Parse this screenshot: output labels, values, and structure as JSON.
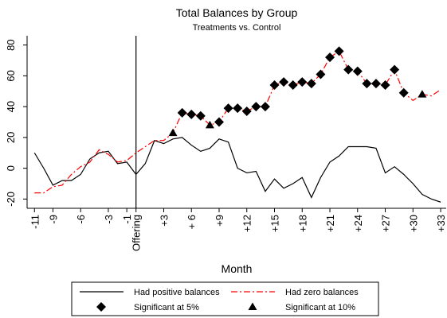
{
  "chart_data": {
    "type": "line",
    "title": "Total Balances by Group",
    "subtitle": "Treatments vs. Control",
    "x_label": "Month",
    "x": [
      -11,
      -10,
      -9,
      -8,
      -7,
      -6,
      -5,
      -4,
      -3,
      -2,
      -1,
      0,
      1,
      2,
      3,
      4,
      5,
      6,
      7,
      8,
      9,
      10,
      11,
      12,
      13,
      14,
      15,
      16,
      17,
      18,
      19,
      20,
      21,
      22,
      23,
      24,
      25,
      26,
      27,
      28,
      29,
      30,
      31,
      32,
      33
    ],
    "series": [
      {
        "name": "Had positive balances",
        "color": "#000000",
        "style": "solid",
        "values": [
          10,
          0,
          -11,
          -8,
          -8,
          -4,
          6,
          10,
          11,
          3,
          4,
          -4,
          3,
          18,
          16,
          19,
          20,
          15,
          11,
          13,
          19,
          17,
          0,
          -3,
          -2,
          -15,
          -7,
          -13,
          -10,
          -6,
          -19,
          -6,
          4,
          8,
          14,
          14,
          14,
          13,
          -3,
          1,
          -4,
          -10,
          -17,
          -20,
          -22
        ]
      },
      {
        "name": "Had zero balances",
        "color": "#ff0000",
        "style": "dashdot",
        "values": [
          -16,
          -16,
          -12,
          -11,
          -4,
          1,
          4,
          12,
          9,
          4,
          5,
          10,
          14,
          18,
          18,
          23,
          36,
          35,
          34,
          28,
          30,
          39,
          39,
          37,
          40,
          40,
          54,
          56,
          54,
          56,
          55,
          61,
          72,
          76,
          64,
          63,
          55,
          55,
          54,
          64,
          49,
          44,
          48,
          47,
          51
        ]
      },
      {
        "name": "Significant at 5%",
        "color": "#000000",
        "style": "diamond",
        "values": [
          null,
          null,
          null,
          null,
          null,
          null,
          null,
          null,
          null,
          null,
          null,
          null,
          null,
          null,
          null,
          null,
          36,
          35,
          34,
          null,
          30,
          39,
          39,
          37,
          40,
          40,
          54,
          56,
          54,
          56,
          55,
          61,
          72,
          76,
          64,
          63,
          55,
          55,
          54,
          64,
          49,
          null,
          null,
          null,
          null
        ]
      },
      {
        "name": "Significant at 10%",
        "color": "#000000",
        "style": "triangle",
        "values": [
          null,
          null,
          null,
          null,
          null,
          null,
          null,
          null,
          null,
          null,
          null,
          null,
          null,
          null,
          null,
          23,
          null,
          null,
          null,
          28,
          null,
          null,
          null,
          null,
          null,
          null,
          null,
          null,
          null,
          null,
          null,
          null,
          null,
          null,
          null,
          null,
          null,
          null,
          null,
          null,
          null,
          null,
          48,
          null,
          null
        ]
      }
    ],
    "vline": 0,
    "xlim": [
      -11.8,
      33.6
    ],
    "xticks": [
      -11,
      -9,
      -6,
      -3,
      -1,
      {
        "value": 0,
        "label": "Offering"
      },
      {
        "value": 3,
        "label": "+3"
      },
      {
        "value": 6,
        "label": "+ 6"
      },
      {
        "value": 9,
        "label": "+9"
      },
      {
        "value": 12,
        "label": "+12"
      },
      {
        "value": 15,
        "label": "+15"
      },
      {
        "value": 18,
        "label": "+18"
      },
      {
        "value": 21,
        "label": "+21"
      },
      {
        "value": 24,
        "label": "+24"
      },
      {
        "value": 27,
        "label": "+27"
      },
      {
        "value": 30,
        "label": "+30"
      },
      {
        "value": 33,
        "label": "+33"
      }
    ],
    "ylim": [
      -26,
      86
    ],
    "yticks": [
      -20,
      0,
      20,
      40,
      60,
      80
    ],
    "grid": false,
    "legend": "bottom"
  }
}
